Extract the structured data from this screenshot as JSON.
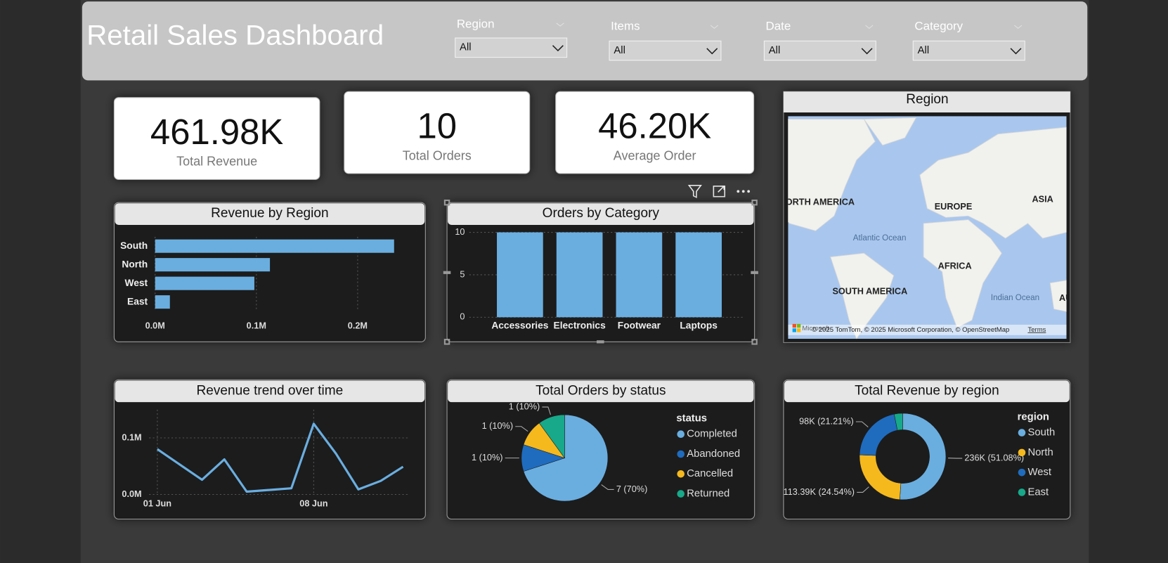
{
  "header": {
    "title": "Retail Sales Dashboard"
  },
  "filters": [
    {
      "label": "Region",
      "value": "All"
    },
    {
      "label": "Items",
      "value": "All"
    },
    {
      "label": "Date",
      "value": "All"
    },
    {
      "label": "Category",
      "value": "All"
    }
  ],
  "kpis": [
    {
      "value": "461.98K",
      "label": "Total Revenue"
    },
    {
      "value": "10",
      "label": "Total Orders"
    },
    {
      "value": "46.20K",
      "label": "Average Order"
    }
  ],
  "map": {
    "title": "Region",
    "labels": [
      "NORTH AMERICA",
      "EUROPE",
      "ASIA",
      "Atlantic Ocean",
      "AFRICA",
      "SOUTH AMERICA",
      "Indian Ocean",
      "AUSTRALIA"
    ],
    "logo": "Microsoft",
    "attribution": "© 2025 TomTom, © 2025 Microsoft Corporation, © OpenStreetMap",
    "terms": "Terms"
  },
  "chart_data": [
    {
      "type": "bar",
      "orientation": "horizontal",
      "title": "Revenue by Region",
      "categories": [
        "South",
        "North",
        "West",
        "East"
      ],
      "values": [
        0.236,
        0.11339,
        0.098,
        0.01459
      ],
      "color": "#6aaee0",
      "xlim": [
        0,
        0.25
      ],
      "xticks": [
        {
          "value": 0,
          "label": "0.0M"
        },
        {
          "value": 0.1,
          "label": "0.1M"
        },
        {
          "value": 0.2,
          "label": "0.2M"
        }
      ],
      "grid": true
    },
    {
      "type": "bar",
      "orientation": "vertical",
      "title": "Orders by Category",
      "categories": [
        "Accessories",
        "Electronics",
        "Footwear",
        "Laptops"
      ],
      "values": [
        10,
        10,
        10,
        10
      ],
      "color": "#6aaee0",
      "ylim": [
        0,
        10
      ],
      "yticks": [
        0,
        5,
        10
      ],
      "grid": true
    },
    {
      "type": "line",
      "title": "Revenue trend over time",
      "x": [
        1,
        3,
        4,
        5,
        7,
        8,
        9,
        10,
        11,
        12
      ],
      "values": [
        0.08,
        0.026,
        0.062,
        0.005,
        0.011,
        0.125,
        0.072,
        0.009,
        0.024,
        0.049
      ],
      "color": "#6aaee0",
      "xlim": [
        0.3,
        12.3
      ],
      "xticks": [
        {
          "value": 1,
          "label": "01 Jun"
        },
        {
          "value": 8,
          "label": "08 Jun"
        }
      ],
      "ylim": [
        0,
        0.15
      ],
      "yticks": [
        {
          "value": 0,
          "label": "0.0M"
        },
        {
          "value": 0.1,
          "label": "0.1M"
        }
      ],
      "grid": true
    },
    {
      "type": "pie",
      "title": "Total Orders by status",
      "legend_title": "status",
      "categories": [
        "Completed",
        "Abandoned",
        "Cancelled",
        "Returned"
      ],
      "values": [
        7,
        1,
        1,
        1
      ],
      "value_labels": [
        "7 (70%)",
        "1 (10%)",
        "1 (10%)",
        "1 (10%)"
      ],
      "colors": [
        "#6aaee0",
        "#1f6cbf",
        "#f5b91e",
        "#17a98a"
      ]
    },
    {
      "type": "donut",
      "title": "Total Revenue by region",
      "legend_title": "region",
      "categories": [
        "South",
        "North",
        "West",
        "East"
      ],
      "values": [
        236,
        113.39,
        98,
        14.59
      ],
      "value_labels": [
        "236K (51.08%)",
        "113.39K (24.54%)",
        "98K (21.21%)",
        null
      ],
      "colors": [
        "#6aaee0",
        "#f5b91e",
        "#1f6cbf",
        "#17a98a"
      ]
    }
  ]
}
